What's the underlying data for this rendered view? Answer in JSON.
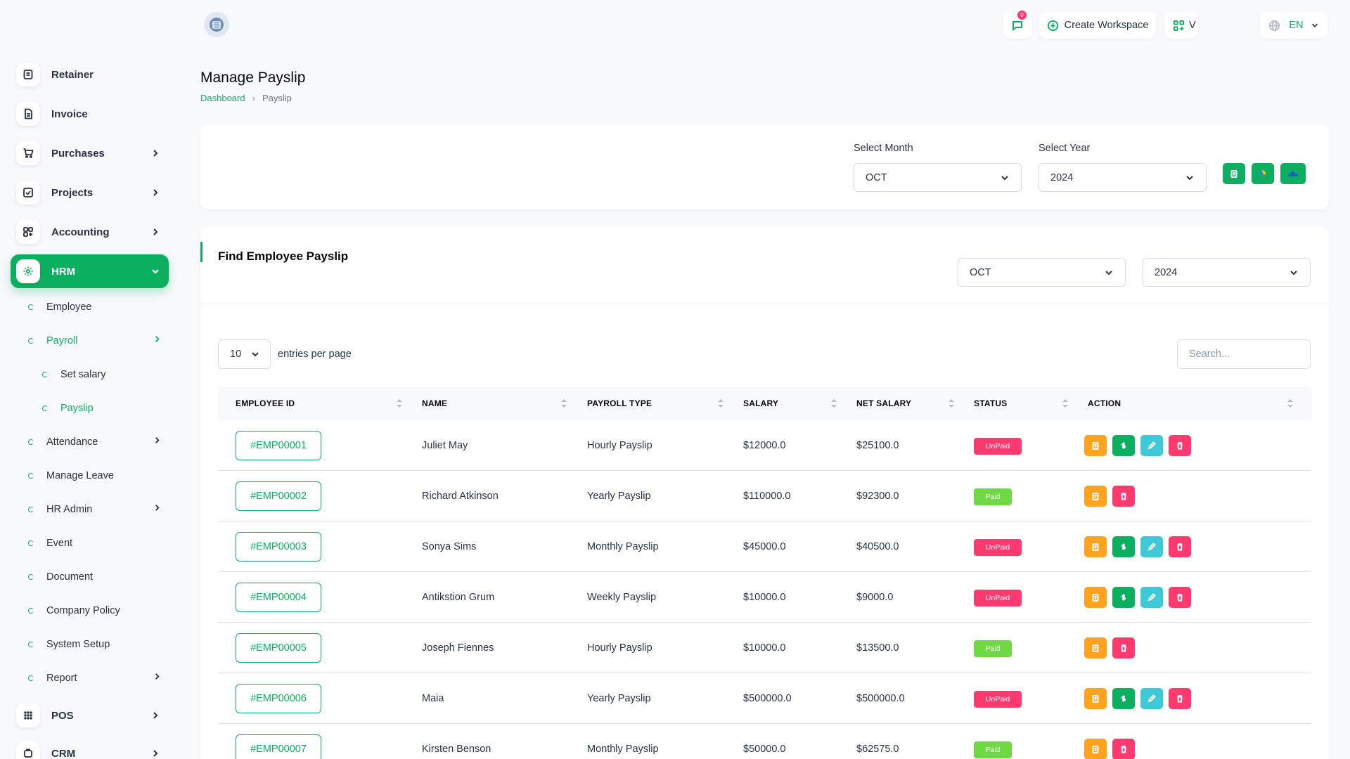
{
  "sidebar": {
    "items": [
      {
        "label": "Retainer",
        "icon": "retainer-icon"
      },
      {
        "label": "Invoice",
        "icon": "invoice-icon"
      },
      {
        "label": "Purchases",
        "icon": "cart-icon"
      },
      {
        "label": "Projects",
        "icon": "checkbox-icon"
      },
      {
        "label": "Accounting",
        "icon": "apps-icon"
      },
      {
        "label": "HRM",
        "icon": "hrm-icon"
      },
      {
        "label": "POS",
        "icon": "grid-icon"
      },
      {
        "label": "CRM",
        "icon": "crm-icon"
      }
    ],
    "hrm_sub": [
      {
        "label": "Employee"
      },
      {
        "label": "Payroll"
      },
      {
        "label": "Set salary"
      },
      {
        "label": "Payslip"
      },
      {
        "label": "Attendance"
      },
      {
        "label": "Manage Leave"
      },
      {
        "label": "HR Admin"
      },
      {
        "label": "Event"
      },
      {
        "label": "Document"
      },
      {
        "label": "Company Policy"
      },
      {
        "label": "System Setup"
      },
      {
        "label": "Report"
      }
    ]
  },
  "topbar": {
    "messages_badge": "0",
    "create_workspace": "Create Workspace",
    "workspace_truncated": "V",
    "language": "EN"
  },
  "page": {
    "title": "Manage Payslip",
    "breadcrumb": [
      "Dashboard",
      "Payslip"
    ]
  },
  "filter": {
    "month_label": "Select Month",
    "month_value": "OCT",
    "year_label": "Select Year",
    "year_value": "2024"
  },
  "find": {
    "title": "Find Employee Payslip",
    "month_value": "OCT",
    "year_value": "2024",
    "entries_value": "10",
    "entries_text": "entries per page",
    "search_placeholder": "Search..."
  },
  "table": {
    "headers": [
      "EMPLOYEE ID",
      "NAME",
      "PAYROLL TYPE",
      "SALARY",
      "NET SALARY",
      "STATUS",
      "ACTION"
    ],
    "rows": [
      {
        "id": "#EMP00001",
        "name": "Juliet May",
        "type": "Hourly Payslip",
        "salary": "$12000.0",
        "net": "$25100.0",
        "status": "UnPaid"
      },
      {
        "id": "#EMP00002",
        "name": "Richard Atkinson",
        "type": "Yearly Payslip",
        "salary": "$110000.0",
        "net": "$92300.0",
        "status": "Paid"
      },
      {
        "id": "#EMP00003",
        "name": "Sonya Sims",
        "type": "Monthly Payslip",
        "salary": "$45000.0",
        "net": "$40500.0",
        "status": "UnPaid"
      },
      {
        "id": "#EMP00004",
        "name": "Antikstion Grum",
        "type": "Weekly Payslip",
        "salary": "$10000.0",
        "net": "$9000.0",
        "status": "UnPaid"
      },
      {
        "id": "#EMP00005",
        "name": "Joseph Fiennes",
        "type": "Hourly Payslip",
        "salary": "$10000.0",
        "net": "$13500.0",
        "status": "Paid"
      },
      {
        "id": "#EMP00006",
        "name": "Maia",
        "type": "Yearly Payslip",
        "salary": "$500000.0",
        "net": "$500000.0",
        "status": "UnPaid"
      },
      {
        "id": "#EMP00007",
        "name": "Kirsten Benson",
        "type": "Monthly Payslip",
        "salary": "$50000.0",
        "net": "$62575.0",
        "status": "Paid"
      }
    ]
  },
  "colors": {
    "primary": "#0CAF60",
    "unpaid": "#ff3a6e",
    "paid": "#6fd943",
    "warning": "#ffa21d",
    "info": "#3ec9d6"
  }
}
